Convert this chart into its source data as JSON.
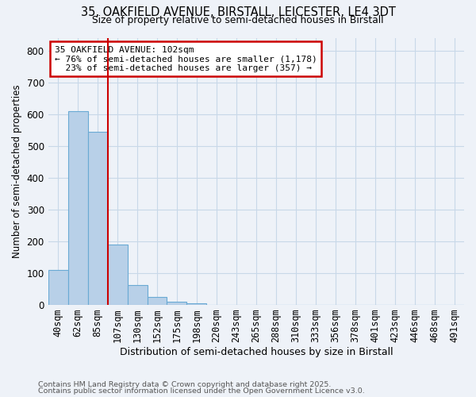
{
  "title1": "35, OAKFIELD AVENUE, BIRSTALL, LEICESTER, LE4 3DT",
  "title2": "Size of property relative to semi-detached houses in Birstall",
  "categories": [
    "40sqm",
    "62sqm",
    "85sqm",
    "107sqm",
    "130sqm",
    "152sqm",
    "175sqm",
    "198sqm",
    "220sqm",
    "243sqm",
    "265sqm",
    "288sqm",
    "310sqm",
    "333sqm",
    "356sqm",
    "378sqm",
    "401sqm",
    "423sqm",
    "446sqm",
    "468sqm",
    "491sqm"
  ],
  "values": [
    110,
    610,
    545,
    190,
    63,
    25,
    10,
    5,
    0,
    0,
    0,
    0,
    0,
    0,
    0,
    0,
    0,
    0,
    0,
    0,
    0
  ],
  "bar_color": "#b8d0e8",
  "bar_edge_color": "#6aaad4",
  "grid_color": "#c8d8e8",
  "red_line_x": 2.5,
  "red_line_color": "#cc0000",
  "ylabel": "Number of semi-detached properties",
  "xlabel": "Distribution of semi-detached houses by size in Birstall",
  "ylim": [
    0,
    840
  ],
  "yticks": [
    0,
    100,
    200,
    300,
    400,
    500,
    600,
    700,
    800
  ],
  "annotation_line1": "35 OAKFIELD AVENUE: 102sqm",
  "annotation_line2": "← 76% of semi-detached houses are smaller (1,178)",
  "annotation_line3": "  23% of semi-detached houses are larger (357) →",
  "annotation_box_color": "#ffffff",
  "annotation_box_edge_color": "#cc0000",
  "footnote1": "Contains HM Land Registry data © Crown copyright and database right 2025.",
  "footnote2": "Contains public sector information licensed under the Open Government Licence v3.0.",
  "background_color": "#eef2f8"
}
